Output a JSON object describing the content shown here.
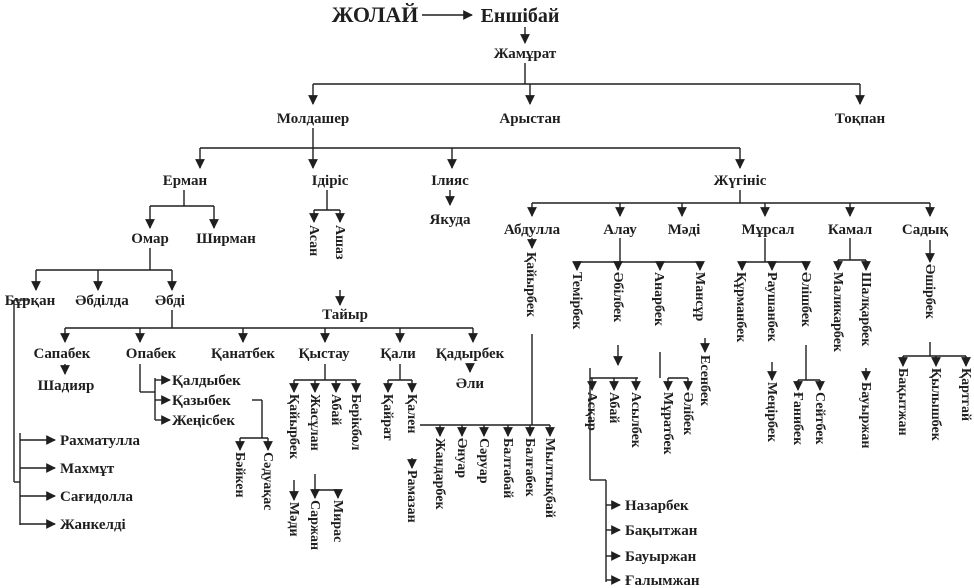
{
  "names": {
    "zholai": "ЖОЛАЙ",
    "enshibai": "Еншібай",
    "zhamurat": "Жамұрат",
    "moldasher": "Молдашер",
    "arystan": "Арыстан",
    "tokpan": "Тоқпан",
    "erman": "Ерман",
    "idiris": "Ідіріс",
    "iliyas": "Ілияс",
    "zhugіnis": "Жүгініс",
    "yakuda": "Якуда",
    "omar": "Омар",
    "shyrman": "Ширман",
    "asan": "Асан",
    "ashaz": "Ашаз",
    "taiyr": "Тайыр",
    "burkan": "Бұрқан",
    "abdilda": "Әбділда",
    "abdi": "Әбді",
    "sapabek": "Сапабек",
    "shadiyar": "Шадияр",
    "opabek": "Опабек",
    "kanatbek": "Қанатбек",
    "kystau": "Қыстау",
    "kali": "Қали",
    "kadyrbek": "Қадырбек",
    "ali": "Әли",
    "kaldybek": "Қалдыбек",
    "kazybek": "Қазыбек",
    "zhenisbek": "Жеңісбек",
    "kairbek_k": "Қайырбек",
    "zhasulan": "Жасұлан",
    "abai1": "Абай",
    "berikbol": "Берікбол",
    "kairat": "Қайрат",
    "kalen": "Қален",
    "baiken": "Бәйкен",
    "saduakas": "Сәдуақас",
    "madi2": "Мәди",
    "sarzhan": "Саржан",
    "miras": "Мирас",
    "ramazan": "Рамазан",
    "rakhmatulla": "Рахматулла",
    "makhmut": "Махмұт",
    "sagidolla": "Сағидолла",
    "zhankeldi": "Жанкелді",
    "abdulla": "Абдулла",
    "alau": "Алау",
    "madi": "Мәді",
    "mursal": "Мұрсал",
    "kamal": "Камал",
    "sadyk": "Садық",
    "kaiyrbek": "Қайырбек",
    "temirbek": "Темірбек",
    "abilbek": "Әбілбек",
    "anarbek": "Анарбек",
    "mansur": "Мансұр",
    "esenbek": "Есенбек",
    "askar": "Асқар",
    "abai2": "Абай",
    "asylbek": "Асылбек",
    "muratbek": "Мұратбек",
    "alibek": "Әлібек",
    "kurmanbek": "Құрманбек",
    "raushanbek": "Раушанбек",
    "alishbek": "Әлішбек",
    "menirbek": "Меңірбек",
    "ganibek": "Ғанибек",
    "seitbek": "Сейтбек",
    "malikarbek": "Маликарбек",
    "shalkarbek": "Шалқарбек",
    "bauyrzhan_s": "Бауыржан",
    "ashirbek": "Әшірбек",
    "bakytzhan_v": "Бақытжан",
    "kylyshbek": "Қылышбек",
    "kartgai": "Қартгай",
    "zhandarbek": "Жандарбек",
    "anuar": "Әнуар",
    "saryar": "Сәруар",
    "baltabai": "Балтабай",
    "baltabek": "Балғабек",
    "myltykbai": "Мылтықбай",
    "nazarbek": "Назарбек",
    "bakytzhan": "Бақытжан",
    "bauyrzhan": "Бауыржан",
    "galymzhan": "Ғалымжан"
  }
}
